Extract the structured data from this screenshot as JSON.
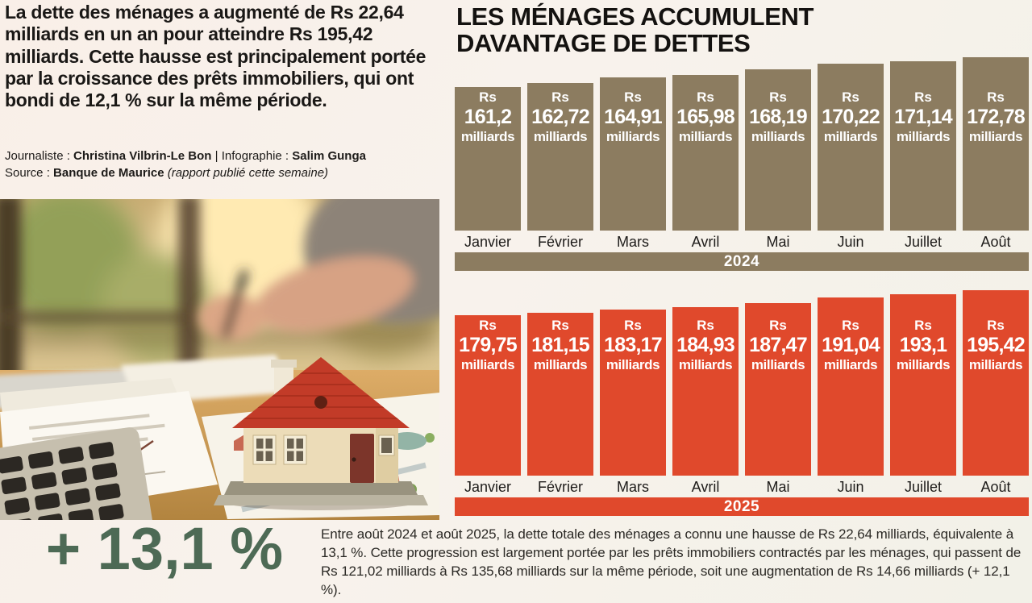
{
  "intro": {
    "text": "La dette des ménages a augmenté de Rs 22,64 milliards en un an pour atteindre Rs 195,42 milliards. Cette hausse est principalement portée par la croissance des prêts immobiliers, qui ont bondi de 12,1 % sur la même période."
  },
  "credits": {
    "journalist_label": "Journaliste :",
    "journalist_name": "Christina Vilbrin-Le Bon",
    "separator": "|",
    "infographic_label": "Infographie :",
    "infographic_name": "Salim Gunga",
    "source_label": "Source :",
    "source_name": "Banque de Maurice",
    "source_note": "(rapport publié cette semaine)"
  },
  "headline": {
    "line1": "LES MÉNAGES ACCUMULENT",
    "line2": "DAVANTAGE DE DETTES"
  },
  "chart_data": [
    {
      "type": "bar",
      "year": "2024",
      "color": "#8c7c60",
      "unit_prefix": "Rs",
      "unit_suffix": "milliards",
      "categories": [
        "Janvier",
        "Février",
        "Mars",
        "Avril",
        "Mai",
        "Juin",
        "Juillet",
        "Août"
      ],
      "values": [
        161.2,
        162.72,
        164.91,
        165.98,
        168.19,
        170.22,
        171.14,
        172.78
      ],
      "display_values": [
        "161,2",
        "162,72",
        "164,91",
        "165,98",
        "168,19",
        "170,22",
        "171,14",
        "172,78"
      ],
      "ylabel": "Rs milliards",
      "legend": "none",
      "grid": false
    },
    {
      "type": "bar",
      "year": "2025",
      "color": "#e0492c",
      "unit_prefix": "Rs",
      "unit_suffix": "milliards",
      "categories": [
        "Janvier",
        "Février",
        "Mars",
        "Avril",
        "Mai",
        "Juin",
        "Juillet",
        "Août"
      ],
      "values": [
        179.75,
        181.15,
        183.17,
        184.93,
        187.47,
        191.04,
        193.1,
        195.42
      ],
      "display_values": [
        "179,75",
        "181,15",
        "183,17",
        "184,93",
        "187,47",
        "191,04",
        "193,1",
        "195,42"
      ],
      "ylabel": "Rs milliards",
      "legend": "none",
      "grid": false
    }
  ],
  "highlight": {
    "value": "+ 13,1 %",
    "color": "#4d6a55"
  },
  "footnote": {
    "text": "Entre août 2024 et août 2025, la dette totale des ménages a connu une hausse de Rs 22,64 milliards, équivalente à 13,1 %. Cette progression est largement portée par les prêts immobiliers contractés par les ménages, qui passent de Rs 121,02 milliards à Rs 135,68 milliards sur la même période, soit une augmentation de Rs 14,66 milliards (+ 12,1 %)."
  }
}
